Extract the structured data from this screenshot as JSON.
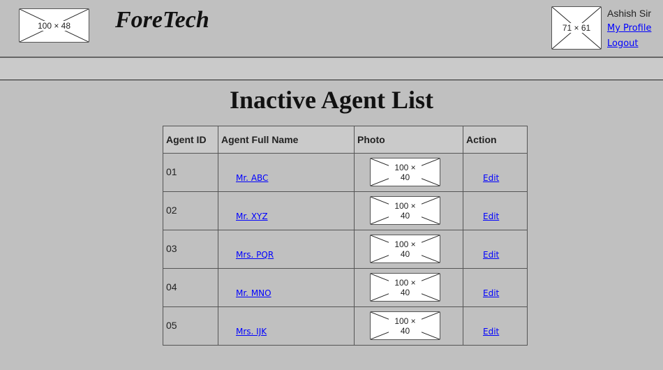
{
  "header": {
    "logo_placeholder": "100 × 48",
    "brand": "ForeTech",
    "avatar_placeholder": "71 × 61",
    "user_name": "Ashish Sir",
    "my_profile": "My Profile",
    "logout": "Logout"
  },
  "page_title": "Inactive Agent List",
  "table": {
    "columns": [
      "Agent ID",
      "Agent Full Name",
      "Photo",
      "Action"
    ],
    "rows": [
      {
        "id": "01",
        "name": "Mr. ABC",
        "photo": "100 × 40",
        "action": "Edit"
      },
      {
        "id": "02",
        "name": "Mr. XYZ",
        "photo": "100 × 40",
        "action": "Edit"
      },
      {
        "id": "03",
        "name": "Mrs. PQR",
        "photo": "100 × 40",
        "action": "Edit"
      },
      {
        "id": "04",
        "name": "Mr. MNO",
        "photo": "100 × 40",
        "action": "Edit"
      },
      {
        "id": "05",
        "name": "Mrs. IJK",
        "photo": "100 × 40",
        "action": "Edit"
      }
    ]
  }
}
